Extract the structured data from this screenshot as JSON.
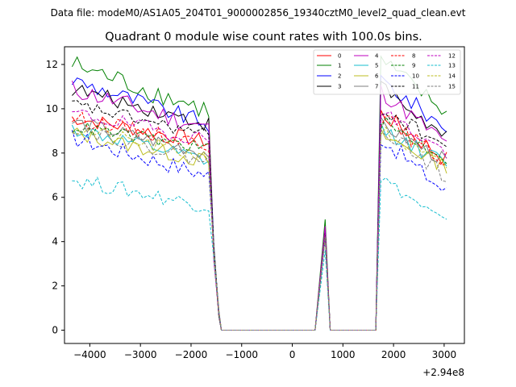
{
  "chart_data": {
    "type": "line",
    "suptitle": "Data file: modeM0/AS1A05_204T01_9000002856_19340cztM0_level2_quad_clean.evt",
    "title": "Quadrant 0 module wise count rates with 100.0s bins.",
    "xlabel": "",
    "ylabel": "",
    "x_offset_label": "+2.94e8",
    "xlim": [
      -4500,
      3400
    ],
    "ylim": [
      -0.6,
      12.8
    ],
    "x_ticks": [
      -4000,
      -3000,
      -2000,
      -1000,
      0,
      1000,
      2000,
      3000
    ],
    "x_tick_labels": [
      "−4000",
      "−3000",
      "−2000",
      "−1000",
      "0",
      "1000",
      "2000",
      "3000"
    ],
    "y_ticks": [
      0,
      2,
      4,
      6,
      8,
      10,
      12
    ],
    "y_tick_labels": [
      "0",
      "2",
      "4",
      "6",
      "8",
      "10",
      "12"
    ],
    "grid": false,
    "legend_position": "top-right",
    "legend_columns": 4,
    "time_bins": {
      "segment1_start": -4350,
      "segment1_end": -1650,
      "step": 100,
      "drop": [
        -1550,
        -1450
      ],
      "zero_after_drop": [
        -1450,
        450
      ],
      "spike": [
        550,
        650,
        750
      ],
      "zero_after_spike": [
        750,
        1650
      ],
      "segment2_start": 1750,
      "segment2_end": 3050
    },
    "series": [
      {
        "name": "0",
        "color": "#ff0000",
        "linestyle": "solid",
        "level1": 9.6,
        "end1": 8.5,
        "noise1": 0.35,
        "spike_peak": 4.5,
        "start2": 9.8,
        "end2": 7.7,
        "noise2": 0.4
      },
      {
        "name": "1",
        "color": "#008000",
        "linestyle": "solid",
        "level1": 12.0,
        "end1": 9.9,
        "noise1": 0.5,
        "spike_peak": 5.0,
        "start2": 12.2,
        "end2": 9.8,
        "noise2": 0.4
      },
      {
        "name": "2",
        "color": "#0000ff",
        "linestyle": "solid",
        "level1": 11.3,
        "end1": 9.3,
        "noise1": 0.4,
        "spike_peak": 4.6,
        "start2": 11.3,
        "end2": 9.1,
        "noise2": 0.4
      },
      {
        "name": "3",
        "color": "#000000",
        "linestyle": "solid",
        "level1": 10.9,
        "end1": 9.3,
        "noise1": 0.35,
        "spike_peak": 4.4,
        "start2": 11.0,
        "end2": 8.6,
        "noise2": 0.4
      },
      {
        "name": "4",
        "color": "#bf00bf",
        "linestyle": "solid",
        "level1": 10.9,
        "end1": 9.1,
        "noise1": 0.45,
        "spike_peak": 4.7,
        "start2": 10.8,
        "end2": 8.4,
        "noise2": 0.4
      },
      {
        "name": "5",
        "color": "#17becf",
        "linestyle": "solid",
        "level1": 9.1,
        "end1": 7.6,
        "noise1": 0.35,
        "spike_peak": 4.2,
        "start2": 9.1,
        "end2": 7.5,
        "noise2": 0.35
      },
      {
        "name": "6",
        "color": "#bcbd22",
        "linestyle": "solid",
        "level1": 8.9,
        "end1": 7.6,
        "noise1": 0.35,
        "spike_peak": 4.3,
        "start2": 8.8,
        "end2": 7.4,
        "noise2": 0.35
      },
      {
        "name": "7",
        "color": "#7f7f7f",
        "linestyle": "solid",
        "level1": 9.4,
        "end1": 8.0,
        "noise1": 0.35,
        "spike_peak": 4.3,
        "start2": 9.3,
        "end2": 7.6,
        "noise2": 0.35
      },
      {
        "name": "8",
        "color": "#ff0000",
        "linestyle": "dashed",
        "level1": 9.6,
        "end1": 8.4,
        "noise1": 0.35,
        "spike_peak": 4.3,
        "start2": 9.6,
        "end2": 7.6,
        "noise2": 0.4
      },
      {
        "name": "9",
        "color": "#008000",
        "linestyle": "dashed",
        "level1": 9.2,
        "end1": 8.2,
        "noise1": 0.3,
        "spike_peak": 4.2,
        "start2": 9.4,
        "end2": 7.8,
        "noise2": 0.35
      },
      {
        "name": "10",
        "color": "#0000ff",
        "linestyle": "dashed",
        "level1": 8.7,
        "end1": 7.0,
        "noise1": 0.4,
        "spike_peak": 4.2,
        "start2": 8.7,
        "end2": 6.2,
        "noise2": 0.4
      },
      {
        "name": "11",
        "color": "#000000",
        "linestyle": "dashed",
        "level1": 10.2,
        "end1": 8.8,
        "noise1": 0.3,
        "spike_peak": 4.4,
        "start2": 10.0,
        "end2": 8.3,
        "noise2": 0.35
      },
      {
        "name": "12",
        "color": "#bf00bf",
        "linestyle": "dashed",
        "level1": 9.8,
        "end1": 8.6,
        "noise1": 0.35,
        "spike_peak": 4.4,
        "start2": 9.9,
        "end2": 8.0,
        "noise2": 0.35
      },
      {
        "name": "13",
        "color": "#17becf",
        "linestyle": "dashed",
        "level1": 6.8,
        "end1": 5.6,
        "noise1": 0.35,
        "spike_peak": 3.6,
        "start2": 6.9,
        "end2": 4.8,
        "noise2": 0.3
      },
      {
        "name": "14",
        "color": "#bcbd22",
        "linestyle": "dashed",
        "level1": 9.1,
        "end1": 7.8,
        "noise1": 0.35,
        "spike_peak": 4.2,
        "start2": 9.0,
        "end2": 7.3,
        "noise2": 0.35
      },
      {
        "name": "15",
        "color": "#7f7f7f",
        "linestyle": "dashed",
        "level1": 9.2,
        "end1": 7.6,
        "noise1": 0.35,
        "spike_peak": 4.2,
        "start2": 9.2,
        "end2": 6.9,
        "noise2": 0.35
      }
    ]
  }
}
